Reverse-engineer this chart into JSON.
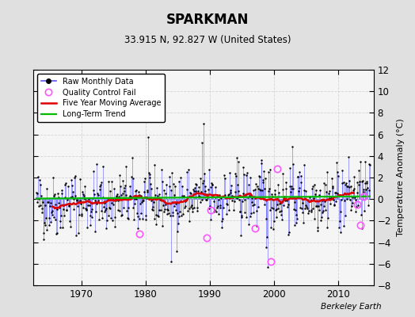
{
  "title": "SPARKMAN",
  "subtitle": "33.915 N, 92.827 W (United States)",
  "ylabel": "Temperature Anomaly (°C)",
  "credit": "Berkeley Earth",
  "ylim": [
    -8,
    12
  ],
  "xlim": [
    1962.5,
    2015.5
  ],
  "xticks": [
    1970,
    1980,
    1990,
    2000,
    2010
  ],
  "yticks": [
    -8,
    -6,
    -4,
    -2,
    0,
    2,
    4,
    6,
    8,
    10,
    12
  ],
  "bg_color": "#e0e0e0",
  "plot_bg_color": "#f5f5f5",
  "seed": 42,
  "n_months": 624,
  "start_year": 1963.0,
  "raw_line_color": "#5555ff",
  "raw_dot_color": "#000000",
  "ma_color": "#dd0000",
  "trend_color": "#00bb00",
  "qc_fail_color": "#ff55ff",
  "qc_fail_positions": [
    [
      1979.0,
      -3.2
    ],
    [
      1989.5,
      -3.6
    ],
    [
      1990.2,
      -1.0
    ],
    [
      1997.0,
      -2.7
    ],
    [
      1999.5,
      -5.8
    ],
    [
      2000.5,
      2.8
    ],
    [
      2013.0,
      -0.5
    ],
    [
      2013.5,
      -2.4
    ],
    [
      2014.0,
      0.2
    ]
  ]
}
